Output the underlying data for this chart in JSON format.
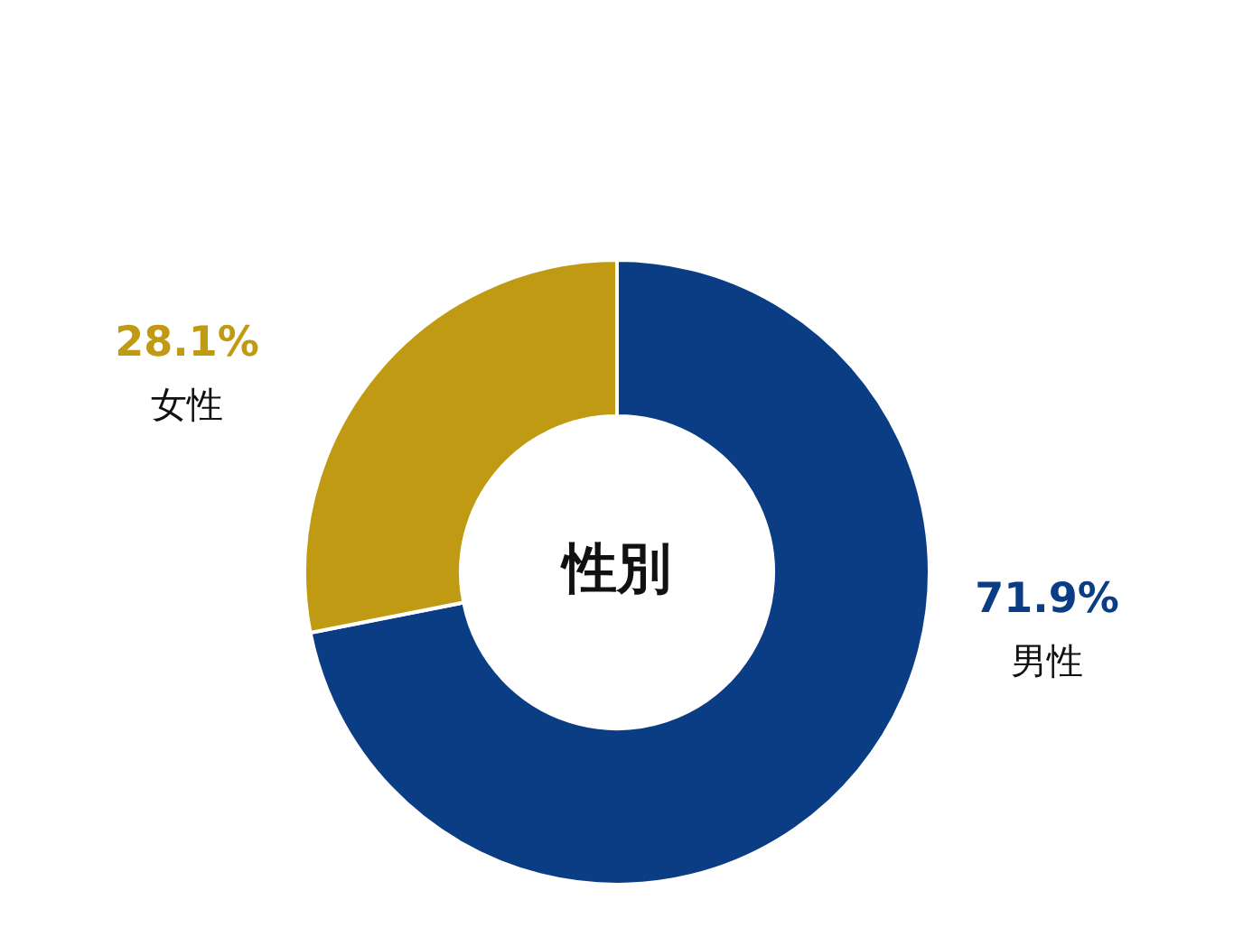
{
  "chart_data": {
    "type": "donut",
    "title": "性別",
    "categories": [
      "男性",
      "女性"
    ],
    "values": [
      71.9,
      28.1
    ],
    "colors": [
      "#0b3d85",
      "#bf9a12"
    ],
    "value_labels": [
      "71.9%",
      "28.1%"
    ],
    "legend": false
  }
}
